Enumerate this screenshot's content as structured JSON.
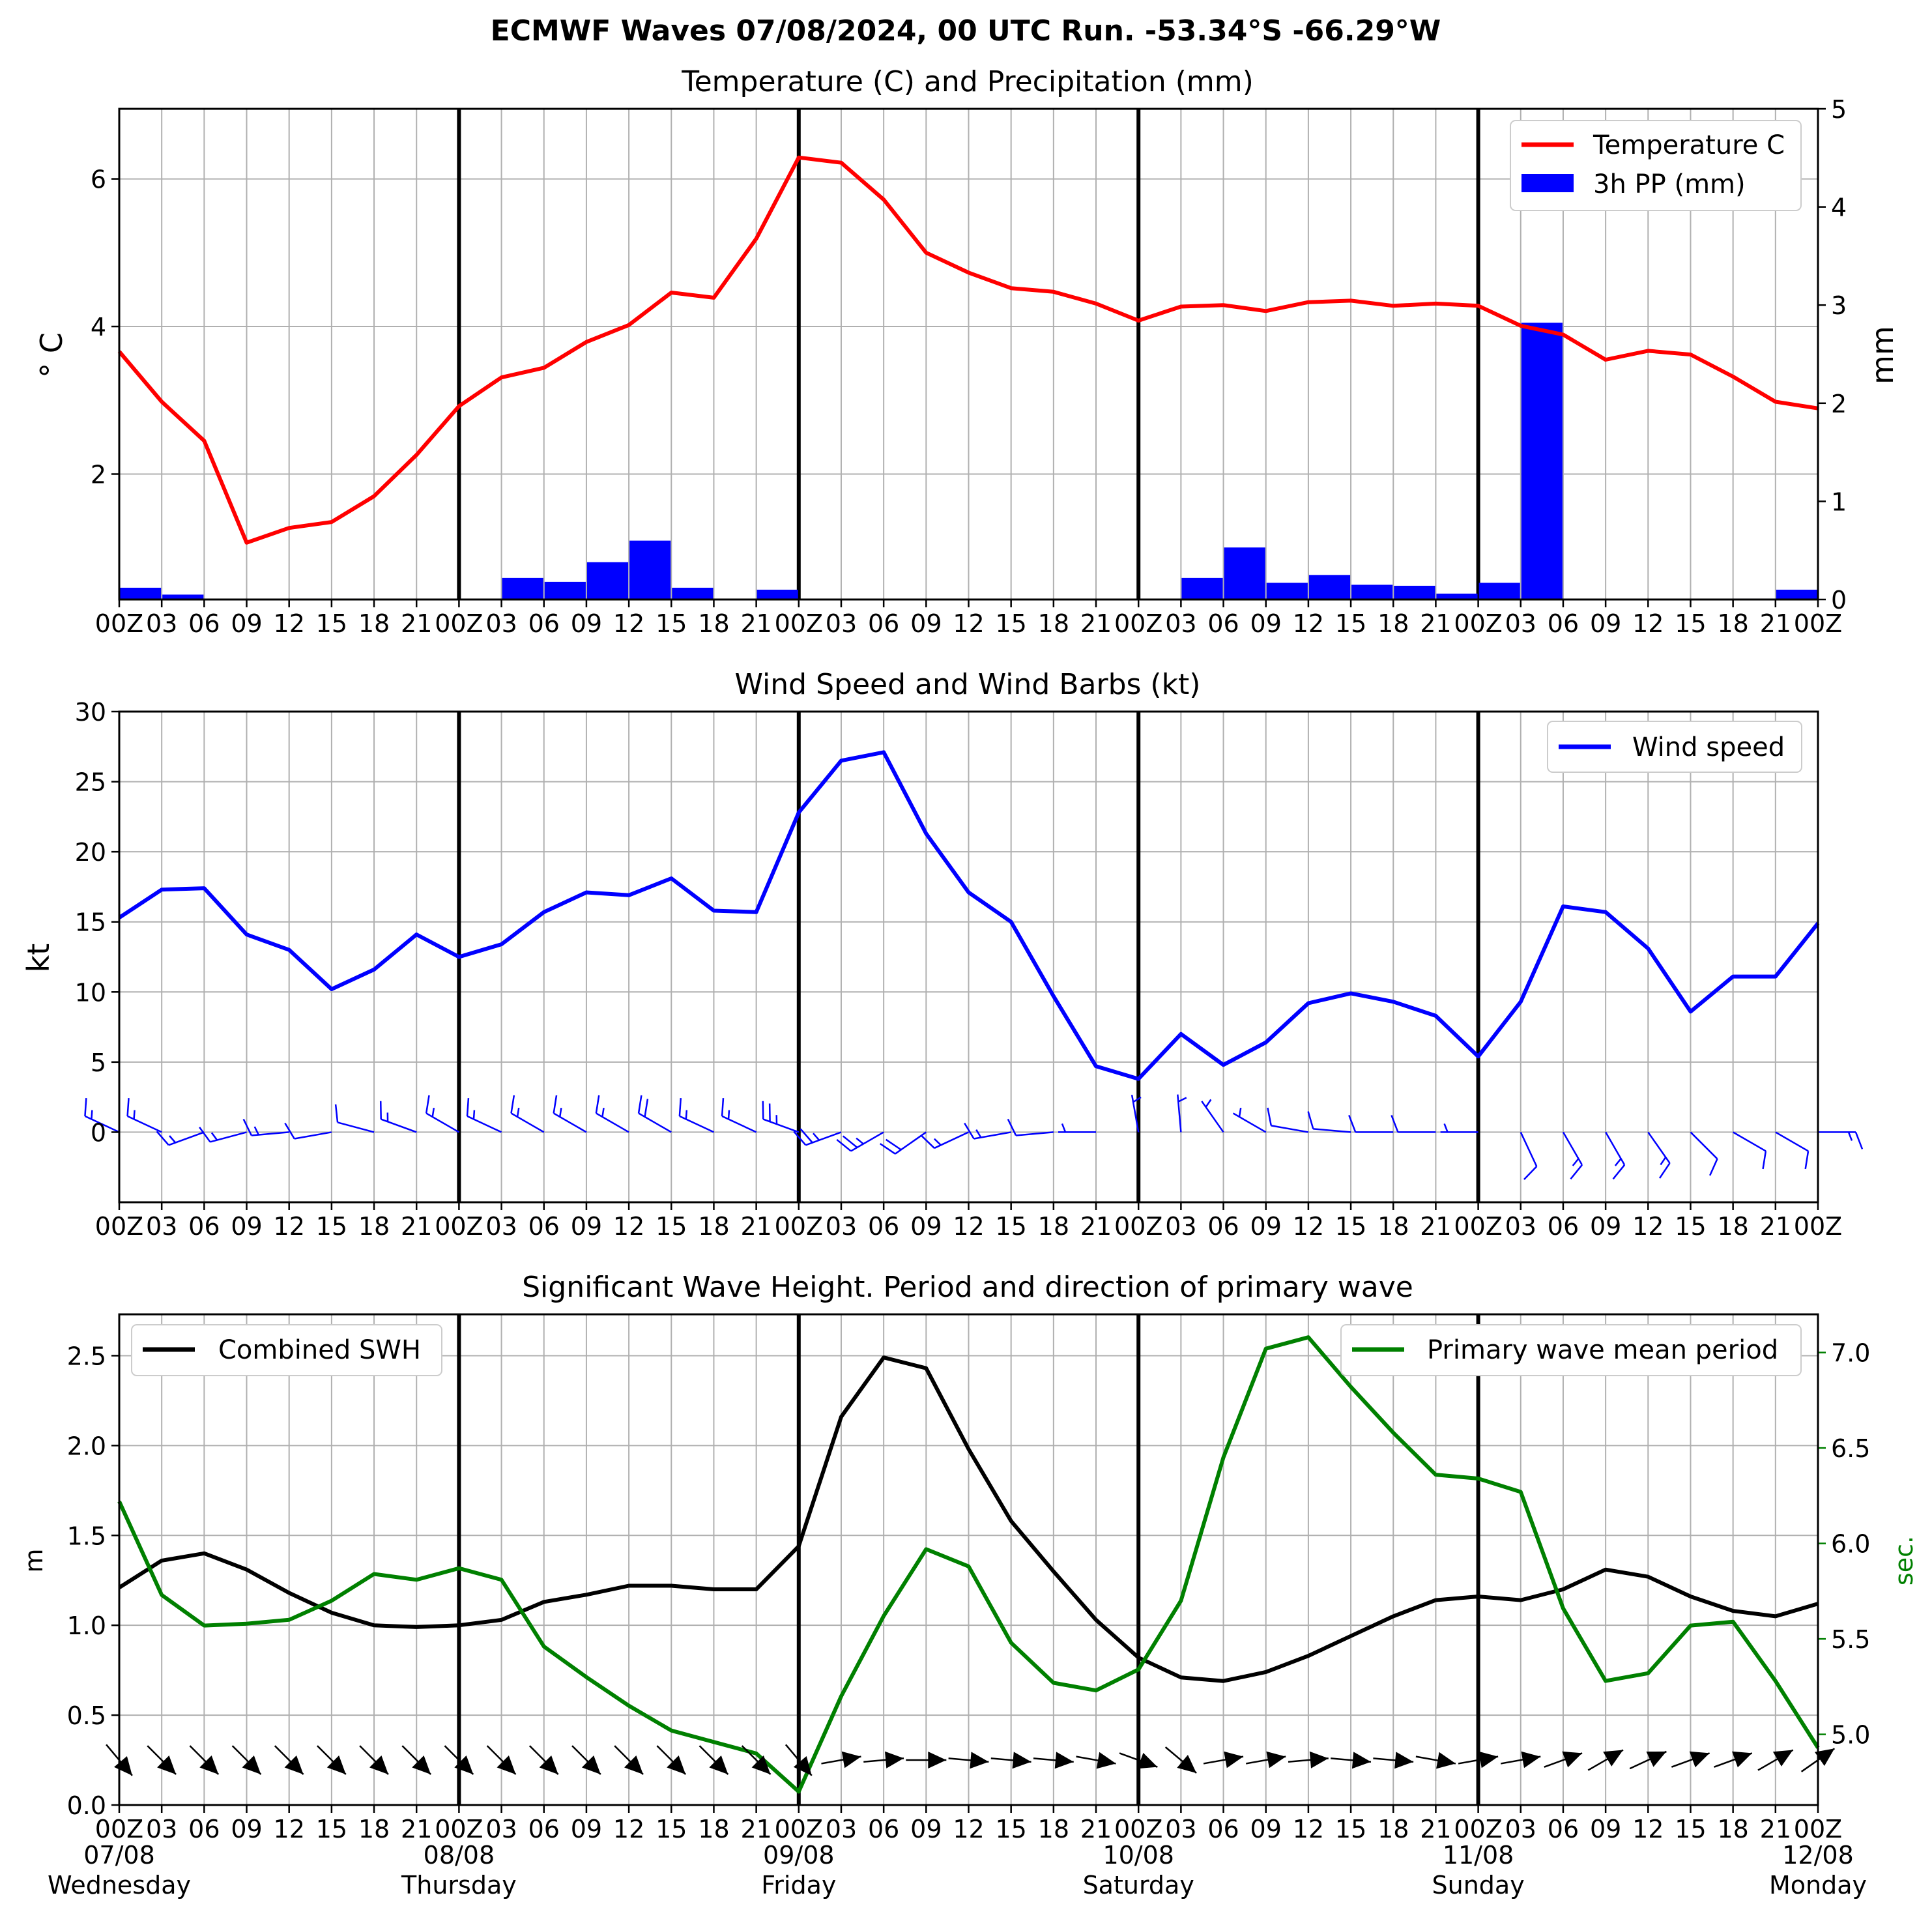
{
  "header": {
    "title": "ECMWF Waves 07/08/2024, 00 UTC Run. -53.34°S -66.29°W"
  },
  "time_axis": {
    "hour_labels": [
      "00Z",
      "03",
      "06",
      "09",
      "12",
      "15",
      "18",
      "21",
      "00Z",
      "03",
      "06",
      "09",
      "12",
      "15",
      "18",
      "21",
      "00Z",
      "03",
      "06",
      "09",
      "12",
      "15",
      "18",
      "21",
      "00Z",
      "03",
      "06",
      "09",
      "12",
      "15",
      "18",
      "21",
      "00Z",
      "03",
      "06",
      "09",
      "12",
      "15",
      "18",
      "21",
      "00Z"
    ],
    "day_labels": [
      {
        "date": "07/08",
        "weekday": "Wednesday"
      },
      {
        "date": "08/08",
        "weekday": "Thursday"
      },
      {
        "date": "09/08",
        "weekday": "Friday"
      },
      {
        "date": "10/08",
        "weekday": "Saturday"
      },
      {
        "date": "11/08",
        "weekday": "Sunday"
      },
      {
        "date": "12/08",
        "weekday": "Monday"
      }
    ]
  },
  "colors": {
    "temperature": "#ff0000",
    "precipitation": "#0000ff",
    "wind": "#0000ff",
    "swh": "#000000",
    "period": "#008000",
    "grid": "#b0b0b0"
  },
  "chart_data": [
    {
      "type": "line",
      "title": "Temperature (C) and Precipitation (mm)",
      "ylabel": "° C",
      "ylabel_right": "mm",
      "ylim": [
        0.3,
        6.95
      ],
      "yticks": [
        2,
        4,
        6
      ],
      "ylim_right": [
        0,
        5
      ],
      "yticks_right": [
        0,
        1,
        2,
        3,
        4,
        5
      ],
      "legend_position": "top-right",
      "grid": true,
      "x_hours": [
        0,
        3,
        6,
        9,
        12,
        15,
        18,
        21,
        24,
        27,
        30,
        33,
        36,
        39,
        42,
        45,
        48,
        51,
        54,
        57,
        60,
        63,
        66,
        69,
        72,
        75,
        78,
        81,
        84,
        87,
        90,
        93,
        96,
        99,
        102,
        105,
        108,
        111,
        114,
        117,
        120
      ],
      "series": [
        {
          "name": "Temperature C",
          "type": "line",
          "values": [
            3.66,
            2.98,
            2.45,
            1.07,
            1.27,
            1.35,
            1.7,
            2.26,
            2.92,
            3.31,
            3.44,
            3.79,
            4.02,
            4.46,
            4.39,
            5.19,
            6.29,
            6.22,
            5.72,
            5.0,
            4.73,
            4.52,
            4.47,
            4.31,
            4.08,
            4.27,
            4.29,
            4.21,
            4.33,
            4.35,
            4.28,
            4.31,
            4.28,
            4.01,
            3.89,
            3.55,
            3.67,
            3.62,
            3.32,
            2.98,
            2.89
          ]
        },
        {
          "name": "3h PP (mm)",
          "type": "bar",
          "axis": "right",
          "values": [
            0.12,
            0.05,
            0,
            0,
            0.01,
            0.01,
            0,
            0,
            0,
            0.22,
            0.18,
            0.38,
            0.6,
            0.12,
            0,
            0.1,
            0,
            0,
            0,
            0,
            0,
            0,
            0,
            0,
            0,
            0.22,
            0.53,
            0.17,
            0.25,
            0.15,
            0.14,
            0.06,
            0.17,
            2.82,
            0,
            0,
            0,
            0,
            0.01,
            0.1
          ]
        }
      ]
    },
    {
      "type": "line",
      "title": "Wind Speed and Wind Barbs (kt)",
      "ylabel": "kt",
      "ylim": [
        -5,
        30
      ],
      "yticks": [
        0,
        5,
        10,
        15,
        20,
        25,
        30
      ],
      "legend_position": "top-right",
      "grid": true,
      "x_hours": [
        0,
        3,
        6,
        9,
        12,
        15,
        18,
        21,
        24,
        27,
        30,
        33,
        36,
        39,
        42,
        45,
        48,
        51,
        54,
        57,
        60,
        63,
        66,
        69,
        72,
        75,
        78,
        81,
        84,
        87,
        90,
        93,
        96,
        99,
        102,
        105,
        108,
        111,
        114,
        117,
        120
      ],
      "series": [
        {
          "name": "Wind speed",
          "type": "line",
          "values": [
            15.3,
            17.3,
            17.4,
            14.1,
            13.0,
            10.2,
            11.6,
            14.1,
            12.5,
            13.4,
            15.7,
            17.1,
            16.9,
            18.1,
            15.8,
            15.7,
            22.8,
            26.5,
            27.1,
            21.3,
            17.1,
            15.0,
            9.7,
            4.7,
            3.8,
            7.0,
            4.8,
            6.4,
            9.2,
            9.9,
            9.3,
            8.3,
            5.4,
            9.3,
            16.1,
            15.7,
            13.1,
            8.6,
            11.1,
            11.1,
            14.9
          ]
        },
        {
          "name": "Wind barbs",
          "type": "barbs",
          "values_from_dir": [
            295,
            295,
            250,
            255,
            265,
            260,
            285,
            290,
            300,
            295,
            300,
            300,
            300,
            300,
            295,
            295,
            290,
            250,
            240,
            235,
            245,
            260,
            265,
            270,
            350,
            355,
            325,
            300,
            280,
            275,
            270,
            270,
            270,
            155,
            150,
            150,
            145,
            135,
            120,
            120,
            90
          ]
        }
      ]
    },
    {
      "type": "line",
      "title": "Significant Wave Height. Period and direction of primary wave",
      "ylabel": "m",
      "ylabel_right": "sec.",
      "ylim": [
        0,
        2.73
      ],
      "yticks": [
        0.0,
        0.5,
        1.0,
        1.5,
        2.0,
        2.5
      ],
      "ylim_right": [
        4.63,
        7.2
      ],
      "yticks_right": [
        5.0,
        5.5,
        6.0,
        6.5,
        7.0
      ],
      "grid": true,
      "x_hours": [
        0,
        3,
        6,
        9,
        12,
        15,
        18,
        21,
        24,
        27,
        30,
        33,
        36,
        39,
        42,
        45,
        48,
        51,
        54,
        57,
        60,
        63,
        66,
        69,
        72,
        75,
        78,
        81,
        84,
        87,
        90,
        93,
        96,
        99,
        102,
        105,
        108,
        111,
        114,
        117,
        120
      ],
      "series": [
        {
          "name": "Combined SWH",
          "type": "line",
          "legend_position": "top-left",
          "values": [
            1.21,
            1.36,
            1.4,
            1.31,
            1.18,
            1.07,
            1.0,
            0.99,
            1.0,
            1.03,
            1.13,
            1.17,
            1.22,
            1.22,
            1.2,
            1.2,
            1.44,
            2.16,
            2.49,
            2.43,
            1.98,
            1.58,
            1.3,
            1.03,
            0.82,
            0.71,
            0.69,
            0.74,
            0.83,
            0.94,
            1.05,
            1.14,
            1.16,
            1.14,
            1.2,
            1.31,
            1.27,
            1.16,
            1.08,
            1.05,
            1.12
          ]
        },
        {
          "name": "Primary wave mean period",
          "type": "line",
          "axis": "right",
          "legend_position": "top-right",
          "values": [
            6.22,
            5.73,
            5.57,
            5.58,
            5.6,
            5.7,
            5.84,
            5.81,
            5.87,
            5.81,
            5.46,
            5.3,
            5.15,
            5.02,
            4.96,
            4.9,
            4.7,
            5.2,
            5.62,
            5.97,
            5.88,
            5.48,
            5.27,
            5.23,
            5.34,
            5.7,
            6.45,
            7.02,
            7.08,
            6.82,
            6.58,
            6.36,
            6.34,
            6.27,
            5.66,
            5.28,
            5.32,
            5.57,
            5.59,
            5.28,
            4.93
          ]
        },
        {
          "name": "Primary wave direction",
          "type": "arrows",
          "values_to_dir": [
            140,
            135,
            135,
            135,
            135,
            135,
            135,
            135,
            135,
            135,
            135,
            135,
            135,
            135,
            135,
            135,
            140,
            80,
            85,
            90,
            95,
            95,
            95,
            100,
            110,
            130,
            80,
            80,
            85,
            95,
            95,
            100,
            80,
            80,
            70,
            60,
            65,
            70,
            70,
            60,
            55
          ]
        }
      ]
    }
  ]
}
